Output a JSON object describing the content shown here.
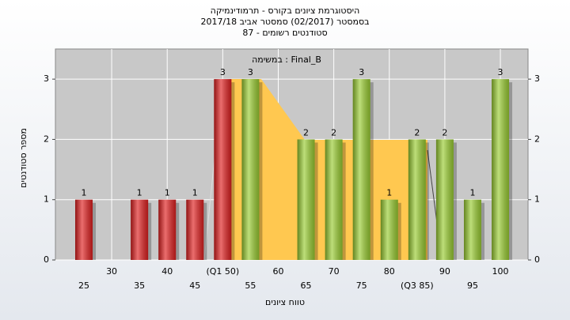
{
  "chart_data": {
    "type": "bar",
    "title": [
      "היסטוגרמת ציונים בקורס - תרמודינמיקה",
      "בסמסטר  (02/2017)  סמסטר אביב 2017/18",
      "סטודנטים רשומים - 87"
    ],
    "annotation": "במשימה : Final_B",
    "ylabel": "מספר סטודנטים",
    "xlabel": "טווח ציונים",
    "categories": [
      "25",
      "30",
      "35",
      "40",
      "45",
      "(Q1 50)",
      "55",
      "60",
      "65",
      "70",
      "75",
      "80",
      "(Q3 85)",
      "90",
      "95",
      "100"
    ],
    "values": [
      1,
      0,
      1,
      1,
      1,
      3,
      3,
      0,
      2,
      2,
      3,
      1,
      2,
      2,
      1,
      3
    ],
    "colors": [
      "#e02020",
      "#e02020",
      "#e02020",
      "#e02020",
      "#e02020",
      "#e02020",
      "#9acd32",
      "#9acd32",
      "#9acd32",
      "#9acd32",
      "#9acd32",
      "#9acd32",
      "#9acd32",
      "#9acd32",
      "#9acd32",
      "#9acd32"
    ],
    "ylim": [
      0,
      3.5
    ],
    "yticks": [
      0,
      1,
      2,
      3
    ],
    "grid": true
  }
}
